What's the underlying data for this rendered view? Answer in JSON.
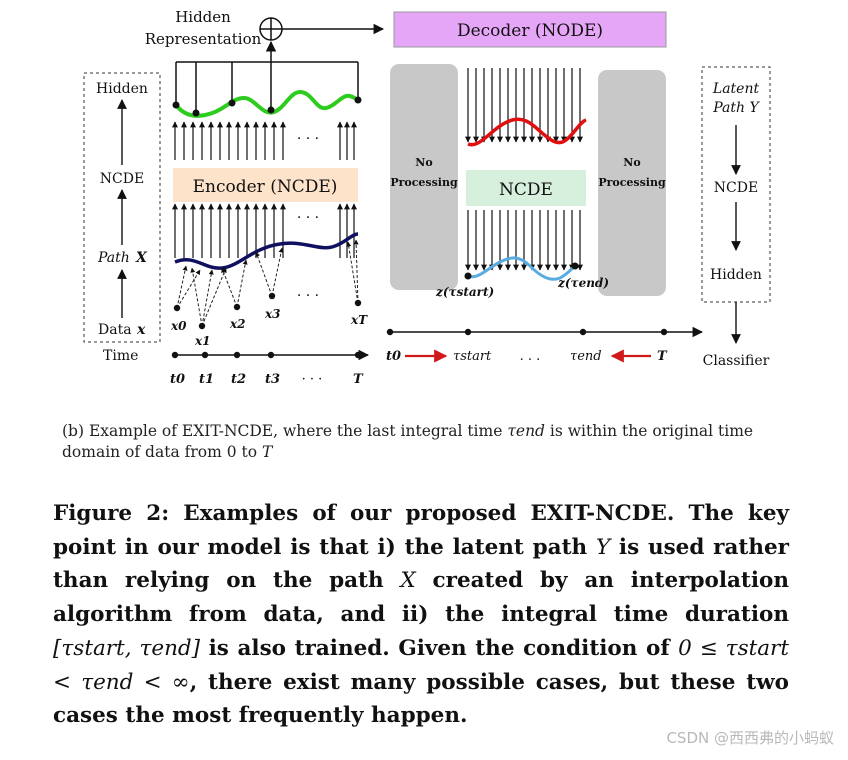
{
  "figure": {
    "hidden_representation": [
      "Hidden",
      "Representation"
    ],
    "decoder_label": "Decoder (NODE)",
    "encoder_label": "Encoder (NCDE)",
    "left_column": {
      "hidden": "Hidden",
      "ncde": "NCDE",
      "path": "Path",
      "path_var": "X",
      "data": "Data",
      "data_var": "x"
    },
    "time_label": "Time",
    "time_ticks": [
      "t0",
      "t1",
      "t2",
      "t3",
      "· · ·",
      "T"
    ],
    "data_points": [
      "x0",
      "x1",
      "x2",
      "x3",
      "xT"
    ],
    "no_processing": [
      "No",
      "Processing"
    ],
    "ncde_label": "NCDE",
    "z_start": "z(τstart)",
    "z_end": "z(τend)",
    "integral_axis": {
      "t0": "t0",
      "tau_start": "τstart",
      "dots": ". . .",
      "tau_end": "τend",
      "T": "T"
    },
    "right_column": {
      "latent": "Latent",
      "path": "Path Y",
      "ncde": "NCDE",
      "hidden": "Hidden",
      "classifier": "Classifier"
    },
    "dots": "· · ·",
    "colors": {
      "decoder": "#e6a6f7",
      "encoder": "#fde3c9",
      "ncde_box": "#d6f0dd",
      "gray": "#c8c8c8",
      "green": "#2ecc1f",
      "navy": "#101060",
      "red": "#e01010",
      "blue": "#5aabe0",
      "arrow_red": "#d01a1a"
    }
  },
  "subcaption": {
    "prefix": "(b) Example of EXIT-NCDE, where the last integral time ",
    "var": "τend",
    "suffix": " is within the original time domain of data from 0 to ",
    "end_var": "T"
  },
  "caption": {
    "p1": "Figure 2: Examples of our proposed EXIT-NCDE. The key point in our model is that i) the latent path ",
    "Y": "Y",
    "p2": " is used rather than relying on the path ",
    "X": "X",
    "p3": " created by an interpolation algorithm from data, and ii) the integral time duration ",
    "interval": "[τstart, τend]",
    "p4": " is also trained. Given the condition of ",
    "condition": "0 ≤ τstart < τend < ∞",
    "p5": ", there exist many possible cases, but these two cases the most frequently happen."
  },
  "watermark": "CSDN @西西弗的小蚂蚁"
}
